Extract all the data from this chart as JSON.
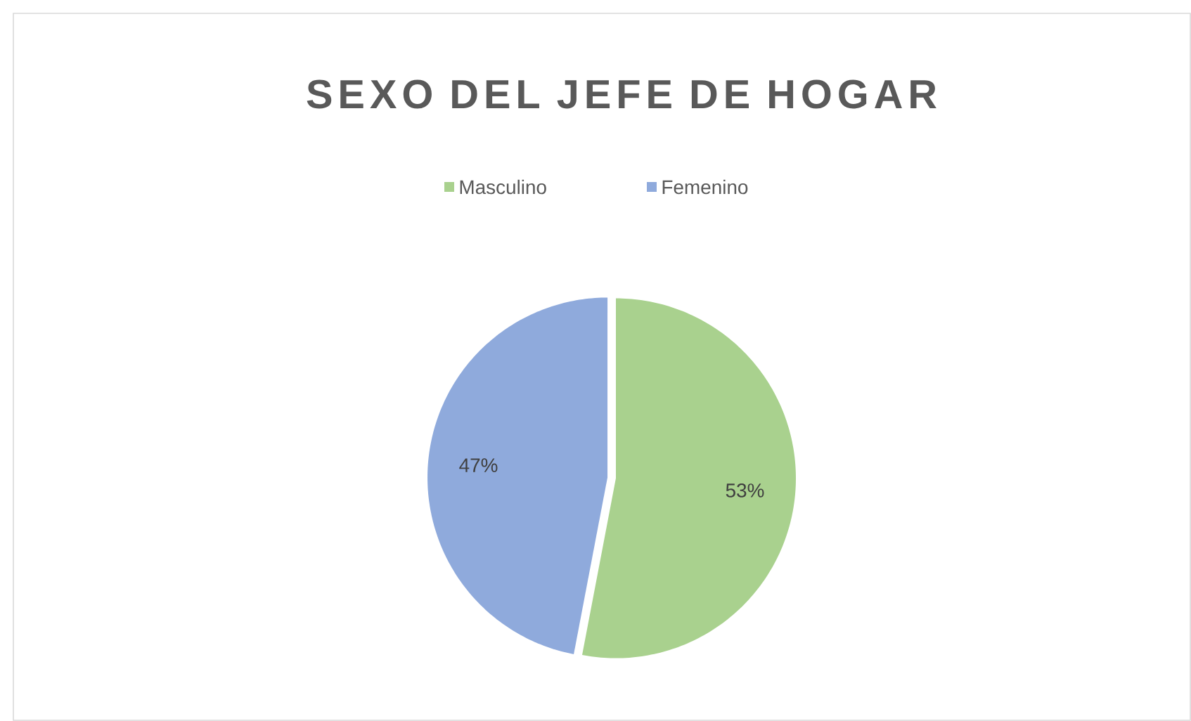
{
  "chart_data": {
    "type": "pie",
    "title": "SEXO DEL JEFE DE HOGAR",
    "categories": [
      "Masculino",
      "Femenino"
    ],
    "values": [
      53,
      47
    ],
    "colors": [
      "#a9d18e",
      "#8faadc"
    ],
    "value_labels": [
      "53%",
      "47%"
    ],
    "legend": "top"
  }
}
